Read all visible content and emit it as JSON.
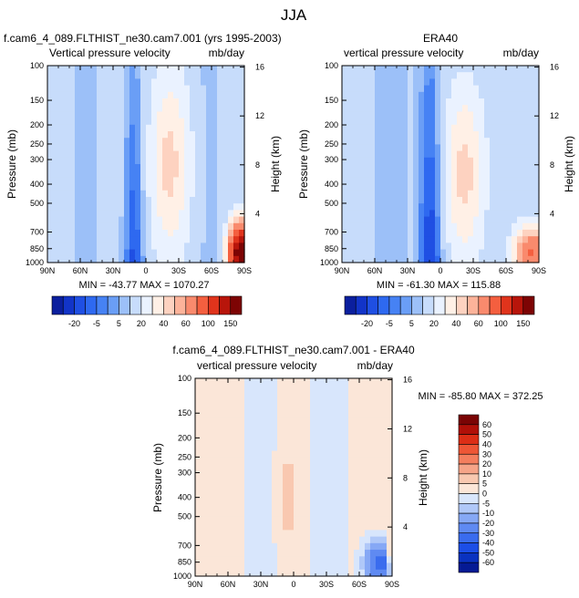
{
  "figure_title": "JJA",
  "colors": {
    "panel_top": [
      "#0b1f9e",
      "#1234c8",
      "#1f4fe3",
      "#2e69f0",
      "#4682f4",
      "#6a9ef6",
      "#9cc0f8",
      "#c7dcfb",
      "#eaf2ff",
      "#fff0e6",
      "#fdd2c0",
      "#fcb39a",
      "#f98a6d",
      "#f45f3f",
      "#e0341c",
      "#b8150b",
      "#7d0404"
    ],
    "panel_diff": [
      "#051a94",
      "#0a32c0",
      "#1c4ee6",
      "#3a6cee",
      "#5f8af2",
      "#86a8f5",
      "#b0c8f8",
      "#d8e6fc",
      "#fbe6d8",
      "#f9c8b0",
      "#f6a488",
      "#f47e5e",
      "#ee5636",
      "#dc2e16",
      "#b01008",
      "#7a0404"
    ]
  },
  "chart_data": [
    {
      "type": "heatmap",
      "title": "f.cam6_4_089.FLTHIST_ne30.cam7.001 (yrs 1995-2003)",
      "subtitle_left": "Vertical pressure velocity",
      "subtitle_right": "mb/day",
      "ylabel": "Pressure (mb)",
      "ylabel_right": "Height (km)",
      "x_ticks": [
        "90N",
        "60N",
        "30N",
        "0",
        "30S",
        "60S",
        "90S"
      ],
      "y_ticks": [
        "100",
        "150",
        "200",
        "250",
        "300",
        "400",
        "500",
        "700",
        "850",
        "1000"
      ],
      "y_ticks_right": [
        "16",
        "12",
        "8",
        "4"
      ],
      "stats": "MIN = -43.77  MAX = 1070.27",
      "colorbar_labels": [
        "-20",
        "-5",
        "5",
        "20",
        "40",
        "60",
        "100",
        "150"
      ],
      "ylim": [
        1000,
        100
      ],
      "xlim": [
        90,
        -90
      ],
      "field_model": "model"
    },
    {
      "type": "heatmap",
      "title": "ERA40",
      "subtitle_left": "vertical pressure velocity",
      "subtitle_right": "mb/day",
      "ylabel": "Pressure (mb)",
      "ylabel_right": "Height (km)",
      "x_ticks": [
        "90N",
        "60N",
        "30N",
        "0",
        "30S",
        "60S",
        "90S"
      ],
      "y_ticks": [
        "100",
        "150",
        "200",
        "250",
        "300",
        "400",
        "500",
        "700",
        "850",
        "1000"
      ],
      "y_ticks_right": [
        "16",
        "12",
        "8",
        "4"
      ],
      "stats": "MIN = -61.30  MAX = 115.88",
      "colorbar_labels": [
        "-20",
        "-5",
        "5",
        "20",
        "40",
        "60",
        "100",
        "150"
      ],
      "ylim": [
        1000,
        100
      ],
      "xlim": [
        90,
        -90
      ],
      "field_model": "obs"
    },
    {
      "type": "heatmap",
      "title": "f.cam6_4_089.FLTHIST_ne30.cam7.001 - ERA40",
      "subtitle_left": "vertical pressure velocity",
      "subtitle_right": "mb/day",
      "ylabel": "Pressure (mb)",
      "ylabel_right": "Height (km)",
      "x_ticks": [
        "90N",
        "60N",
        "30N",
        "0",
        "30S",
        "60S",
        "90S"
      ],
      "y_ticks": [
        "100",
        "150",
        "200",
        "250",
        "300",
        "400",
        "500",
        "700",
        "850",
        "1000"
      ],
      "y_ticks_right": [
        "16",
        "12",
        "8",
        "4"
      ],
      "stats": "MIN = -85.80  MAX = 372.25",
      "colorbar_labels": [
        "60",
        "50",
        "40",
        "30",
        "20",
        "10",
        "5",
        "0",
        "-5",
        "-10",
        "-20",
        "-30",
        "-40",
        "-50",
        "-60"
      ],
      "ylim": [
        1000,
        100
      ],
      "xlim": [
        90,
        -90
      ],
      "field_model": "diff"
    }
  ]
}
